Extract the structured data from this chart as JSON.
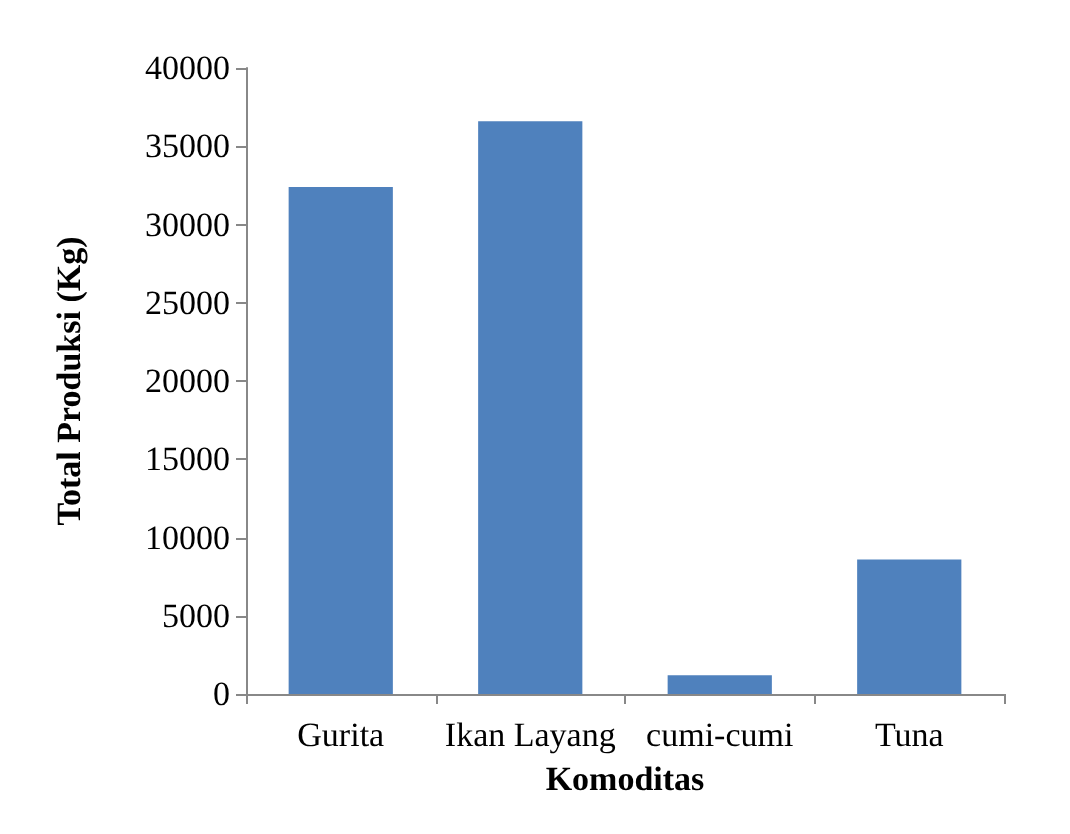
{
  "chart_data": {
    "type": "bar",
    "xlabel": "Komoditas",
    "ylabel": "Total Produksi (Kg)",
    "categories": [
      "Gurita",
      "Ikan Layang",
      "cumi-cumi",
      "Tuna"
    ],
    "values": [
      32400,
      36600,
      1200,
      8600
    ],
    "color": "#4f81bd",
    "ylim": [
      0,
      40000
    ],
    "yticks": [
      0,
      5000,
      10000,
      15000,
      20000,
      25000,
      30000,
      35000,
      40000
    ],
    "grid": false
  }
}
